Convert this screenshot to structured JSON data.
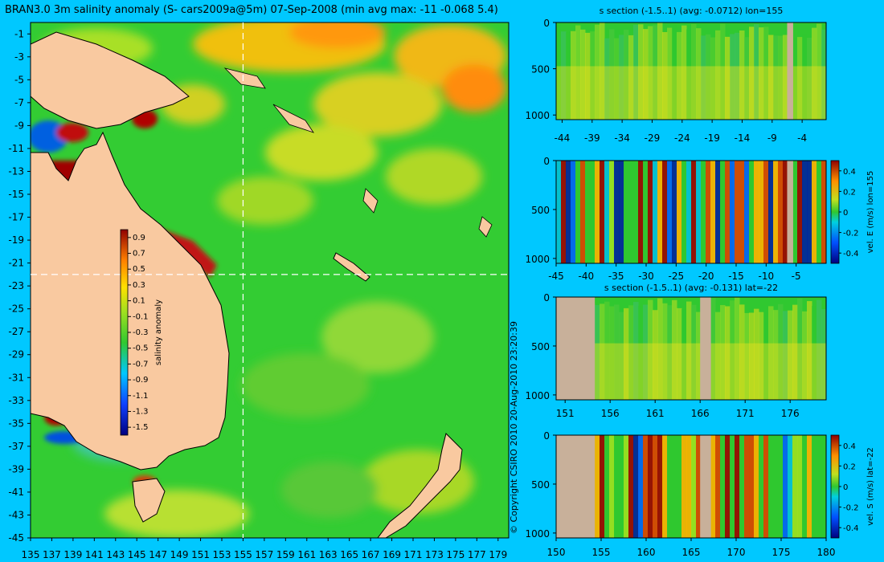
{
  "main_map": {
    "title": "BRAN3.0 3m salinity anomaly (S- cars2009a@5m) 07-Sep-2008 (min avg max: -11 -0.068 5.4)",
    "lon_ticks": [
      "135",
      "137",
      "139",
      "141",
      "143",
      "145",
      "147",
      "149",
      "151",
      "153",
      "155",
      "157",
      "159",
      "161",
      "163",
      "165",
      "167",
      "169",
      "171",
      "173",
      "175",
      "177",
      "179"
    ],
    "lat_ticks": [
      "-1",
      "-3",
      "-5",
      "-7",
      "-9",
      "-11",
      "-13",
      "-15",
      "-17",
      "-19",
      "-21",
      "-23",
      "-25",
      "-27",
      "-29",
      "-31",
      "-33",
      "-35",
      "-37",
      "-39",
      "-41",
      "-43",
      "-45"
    ],
    "lon_range": [
      135,
      180
    ],
    "lat_range": [
      -45,
      0
    ],
    "section_lon": 155,
    "section_lat": -22,
    "colorbar": {
      "label": "salinity anomaly",
      "ticks": [
        "0.9",
        "0.7",
        "0.5",
        "0.3",
        "0.1",
        "-0.1",
        "-0.3",
        "-0.5",
        "-0.7",
        "-0.9",
        "-1.1",
        "-1.3",
        "-1.5"
      ],
      "range": [
        -1.6,
        1.0
      ]
    }
  },
  "copyright": "© Copyright CSIRO 2010   20-Aug-2010 23:20:39",
  "panels": [
    {
      "title": "s section (-1.5..1) (avg: -0.0712) lon=155",
      "x_ticks": [
        "-44",
        "-39",
        "-34",
        "-29",
        "-24",
        "-19",
        "-14",
        "-9",
        "-4"
      ],
      "x_range": [
        -45,
        0
      ],
      "y_ticks": [
        "0",
        "500",
        "1000"
      ],
      "y_range": [
        0,
        1050
      ],
      "colorbar": null
    },
    {
      "title": "",
      "x_ticks": [
        "-45",
        "-40",
        "-35",
        "-30",
        "-25",
        "-20",
        "-15",
        "-10",
        "-5"
      ],
      "x_range": [
        -45,
        0
      ],
      "y_ticks": [
        "0",
        "500",
        "1000"
      ],
      "y_range": [
        0,
        1050
      ],
      "colorbar": {
        "label": "vel. E (m/s) lon=155",
        "ticks": [
          "0.4",
          "0.2",
          "0",
          "-0.2",
          "-0.4"
        ]
      }
    },
    {
      "title": "s section (-1.5..1) (avg: -0.131) lat=-22",
      "x_ticks": [
        "151",
        "156",
        "161",
        "166",
        "171",
        "176"
      ],
      "x_range": [
        150,
        180
      ],
      "y_ticks": [
        "0",
        "500",
        "1000"
      ],
      "y_range": [
        0,
        1050
      ],
      "colorbar": null
    },
    {
      "title": "",
      "x_ticks": [
        "150",
        "155",
        "160",
        "165",
        "170",
        "175",
        "180"
      ],
      "x_range": [
        150,
        180
      ],
      "y_ticks": [
        "0",
        "500",
        "1000"
      ],
      "y_range": [
        0,
        1050
      ],
      "colorbar": {
        "label": "vel. S (m/s) lat=-22",
        "ticks": [
          "0.4",
          "0.2",
          "0",
          "-0.2",
          "-0.4"
        ]
      }
    }
  ],
  "colors": {
    "background": "#00c8ff",
    "land": "#f9c9a0",
    "section_land": "#c8b09a",
    "ocean_base": "#33cc33"
  }
}
